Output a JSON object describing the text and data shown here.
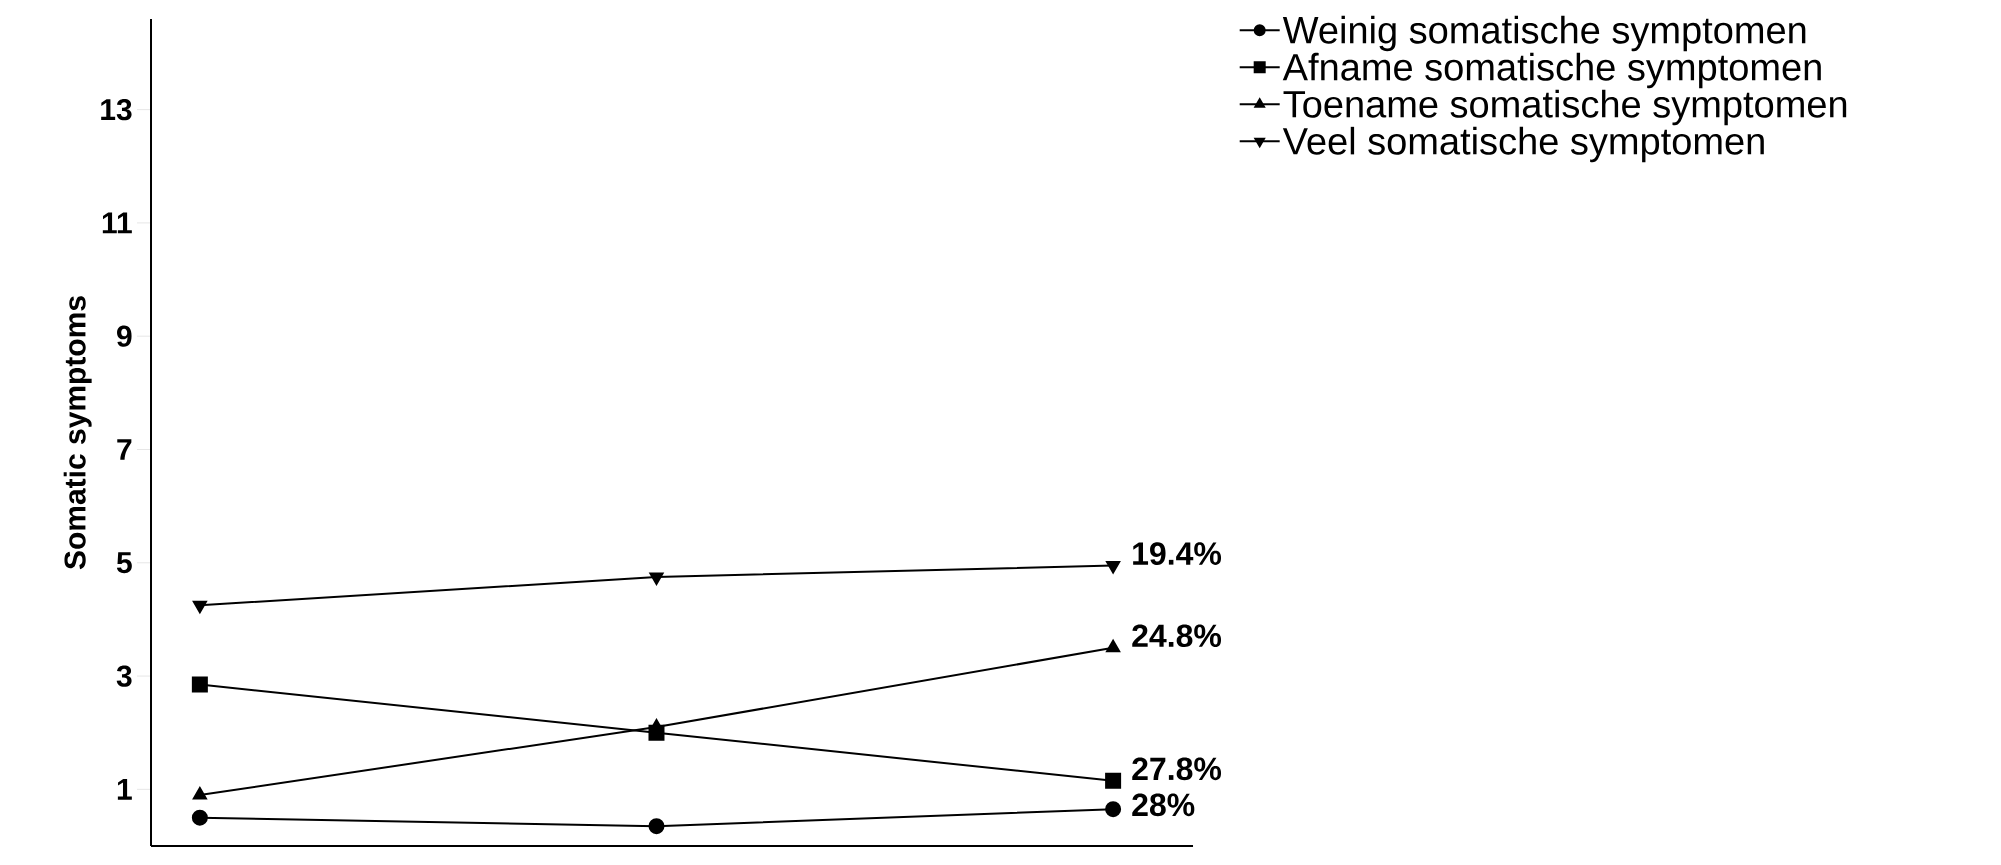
{
  "chart_data": {
    "type": "line",
    "ylabel": "Somatic symptoms",
    "categories": [
      null,
      null,
      null
    ],
    "series": [
      {
        "name": "Weinig somatische symptomen",
        "color": "#000000",
        "marker": "circle",
        "values": [
          0.5,
          0.35,
          0.65
        ]
      },
      {
        "name": "Afname somatische symptomen",
        "color": "#000000",
        "marker": "square",
        "values": [
          2.85,
          2.0,
          1.15
        ]
      },
      {
        "name": "Toename somatische symptomen",
        "color": "#000000",
        "marker": "triangle",
        "values": [
          0.9,
          2.1,
          3.5
        ]
      },
      {
        "name": "Veel somatische symptomen",
        "color": "#000000",
        "marker": "triangle down",
        "values": [
          4.25,
          4.75,
          4.95
        ]
      }
    ],
    "ylim": [
      0,
      14.6
    ],
    "yticks": [
      1,
      3,
      5,
      7,
      9,
      11,
      13
    ],
    "grid": false,
    "legend": "top right",
    "line_style": "solid",
    "annotations": [
      "19.4%",
      "24.8%",
      "27.8%",
      "28%"
    ]
  }
}
